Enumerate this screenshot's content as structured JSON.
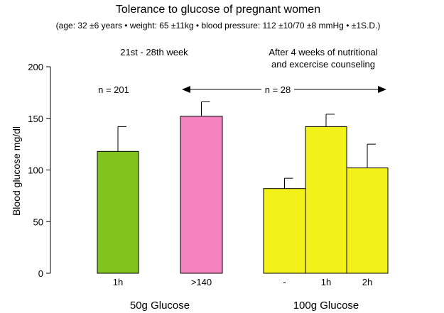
{
  "chart_data": {
    "type": "bar",
    "title": "Tolerance to glucose of pregnant women",
    "subtitle": "(age: 32 ±6 years • weight: 65 ±11kg • blood pressure: 112 ±10/70 ±8 mmHg • ±1S.D.)",
    "ylabel": "Blood glucose mg/dl",
    "ylim": [
      0,
      200
    ],
    "yticks": [
      0,
      50,
      100,
      150,
      200
    ],
    "groups": [
      {
        "label": "50g Glucose",
        "bars": [
          {
            "category": "1h",
            "value": 118,
            "error": 24,
            "color": "#7fc31c"
          },
          {
            "category": ">140",
            "value": 152,
            "error": 14,
            "color": "#f483bf"
          }
        ]
      },
      {
        "label": "100g Glucose",
        "bars": [
          {
            "category": "-",
            "value": 82,
            "error": 10,
            "color": "#f2f21a"
          },
          {
            "category": "1h",
            "value": 142,
            "error": 12,
            "color": "#f2f21a"
          },
          {
            "category": "2h",
            "value": 102,
            "error": 23,
            "color": "#f2f21a"
          }
        ]
      }
    ],
    "annotations": {
      "period_left": "21st -  28th week",
      "period_right_line1": "After 4 weeks of nutritional",
      "period_right_line2": "and excercise counseling",
      "n_left": "n = 201",
      "n_right": "n = 28"
    },
    "grid": false
  }
}
